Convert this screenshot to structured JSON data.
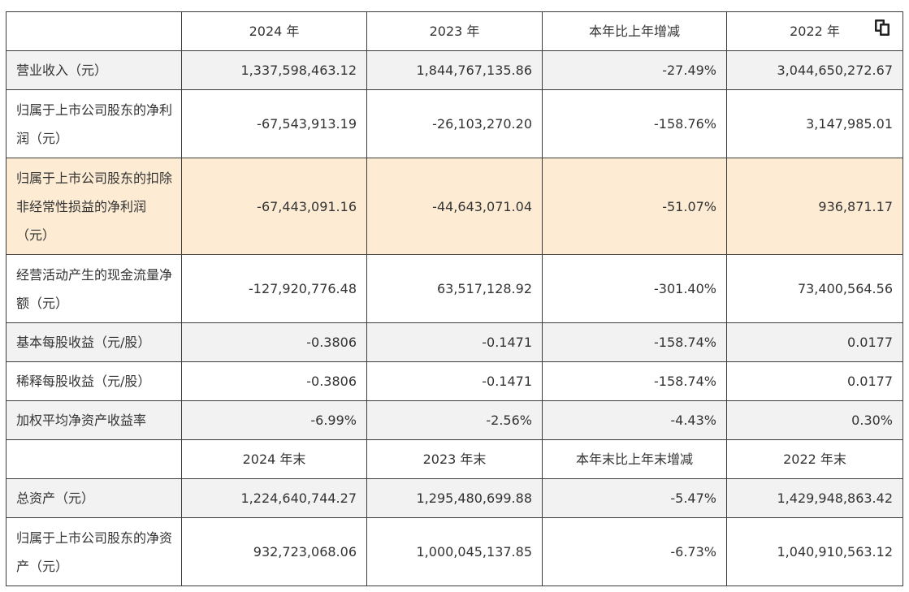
{
  "header1": {
    "blank": "",
    "y2024": "2024 年",
    "y2023": "2023 年",
    "change": "本年比上年增减",
    "y2022": "2022 年"
  },
  "rows1": [
    {
      "label": "营业收入（元）",
      "v2024": "1,337,598,463.12",
      "v2023": "1,844,767,135.86",
      "change": "-27.49%",
      "v2022": "3,044,650,272.67"
    },
    {
      "label": "归属于上市公司股东的净利润（元）",
      "v2024": "-67,543,913.19",
      "v2023": "-26,103,270.20",
      "change": "-158.76%",
      "v2022": "3,147,985.01"
    },
    {
      "label": "归属于上市公司股东的扣除非经常性损益的净利润（元）",
      "v2024": "-67,443,091.16",
      "v2023": "-44,643,071.04",
      "change": "-51.07%",
      "v2022": "936,871.17"
    },
    {
      "label": "经营活动产生的现金流量净额（元）",
      "v2024": "-127,920,776.48",
      "v2023": "63,517,128.92",
      "change": "-301.40%",
      "v2022": "73,400,564.56"
    },
    {
      "label": "基本每股收益（元/股）",
      "v2024": "-0.3806",
      "v2023": "-0.1471",
      "change": "-158.74%",
      "v2022": "0.0177"
    },
    {
      "label": "稀释每股收益（元/股）",
      "v2024": "-0.3806",
      "v2023": "-0.1471",
      "change": "-158.74%",
      "v2022": "0.0177"
    },
    {
      "label": "加权平均净资产收益率",
      "v2024": "-6.99%",
      "v2023": "-2.56%",
      "change": "-4.43%",
      "v2022": "0.30%"
    }
  ],
  "header2": {
    "blank": "",
    "y2024": "2024 年末",
    "y2023": "2023 年末",
    "change": "本年末比上年末增减",
    "y2022": "2022 年末"
  },
  "rows2": [
    {
      "label": "总资产（元）",
      "v2024": "1,224,640,744.27",
      "v2023": "1,295,480,699.88",
      "change": "-5.47%",
      "v2022": "1,429,948,863.42"
    },
    {
      "label": "归属于上市公司股东的净资产（元）",
      "v2024": "932,723,068.06",
      "v2023": "1,000,045,137.85",
      "change": "-6.73%",
      "v2022": "1,040,910,563.12"
    }
  ],
  "icons": {
    "copy": "copy-icon"
  },
  "colors": {
    "highlight_row": "#fdebd3",
    "alt_row": "#f2f2f2",
    "border": "#3c3c3c"
  }
}
